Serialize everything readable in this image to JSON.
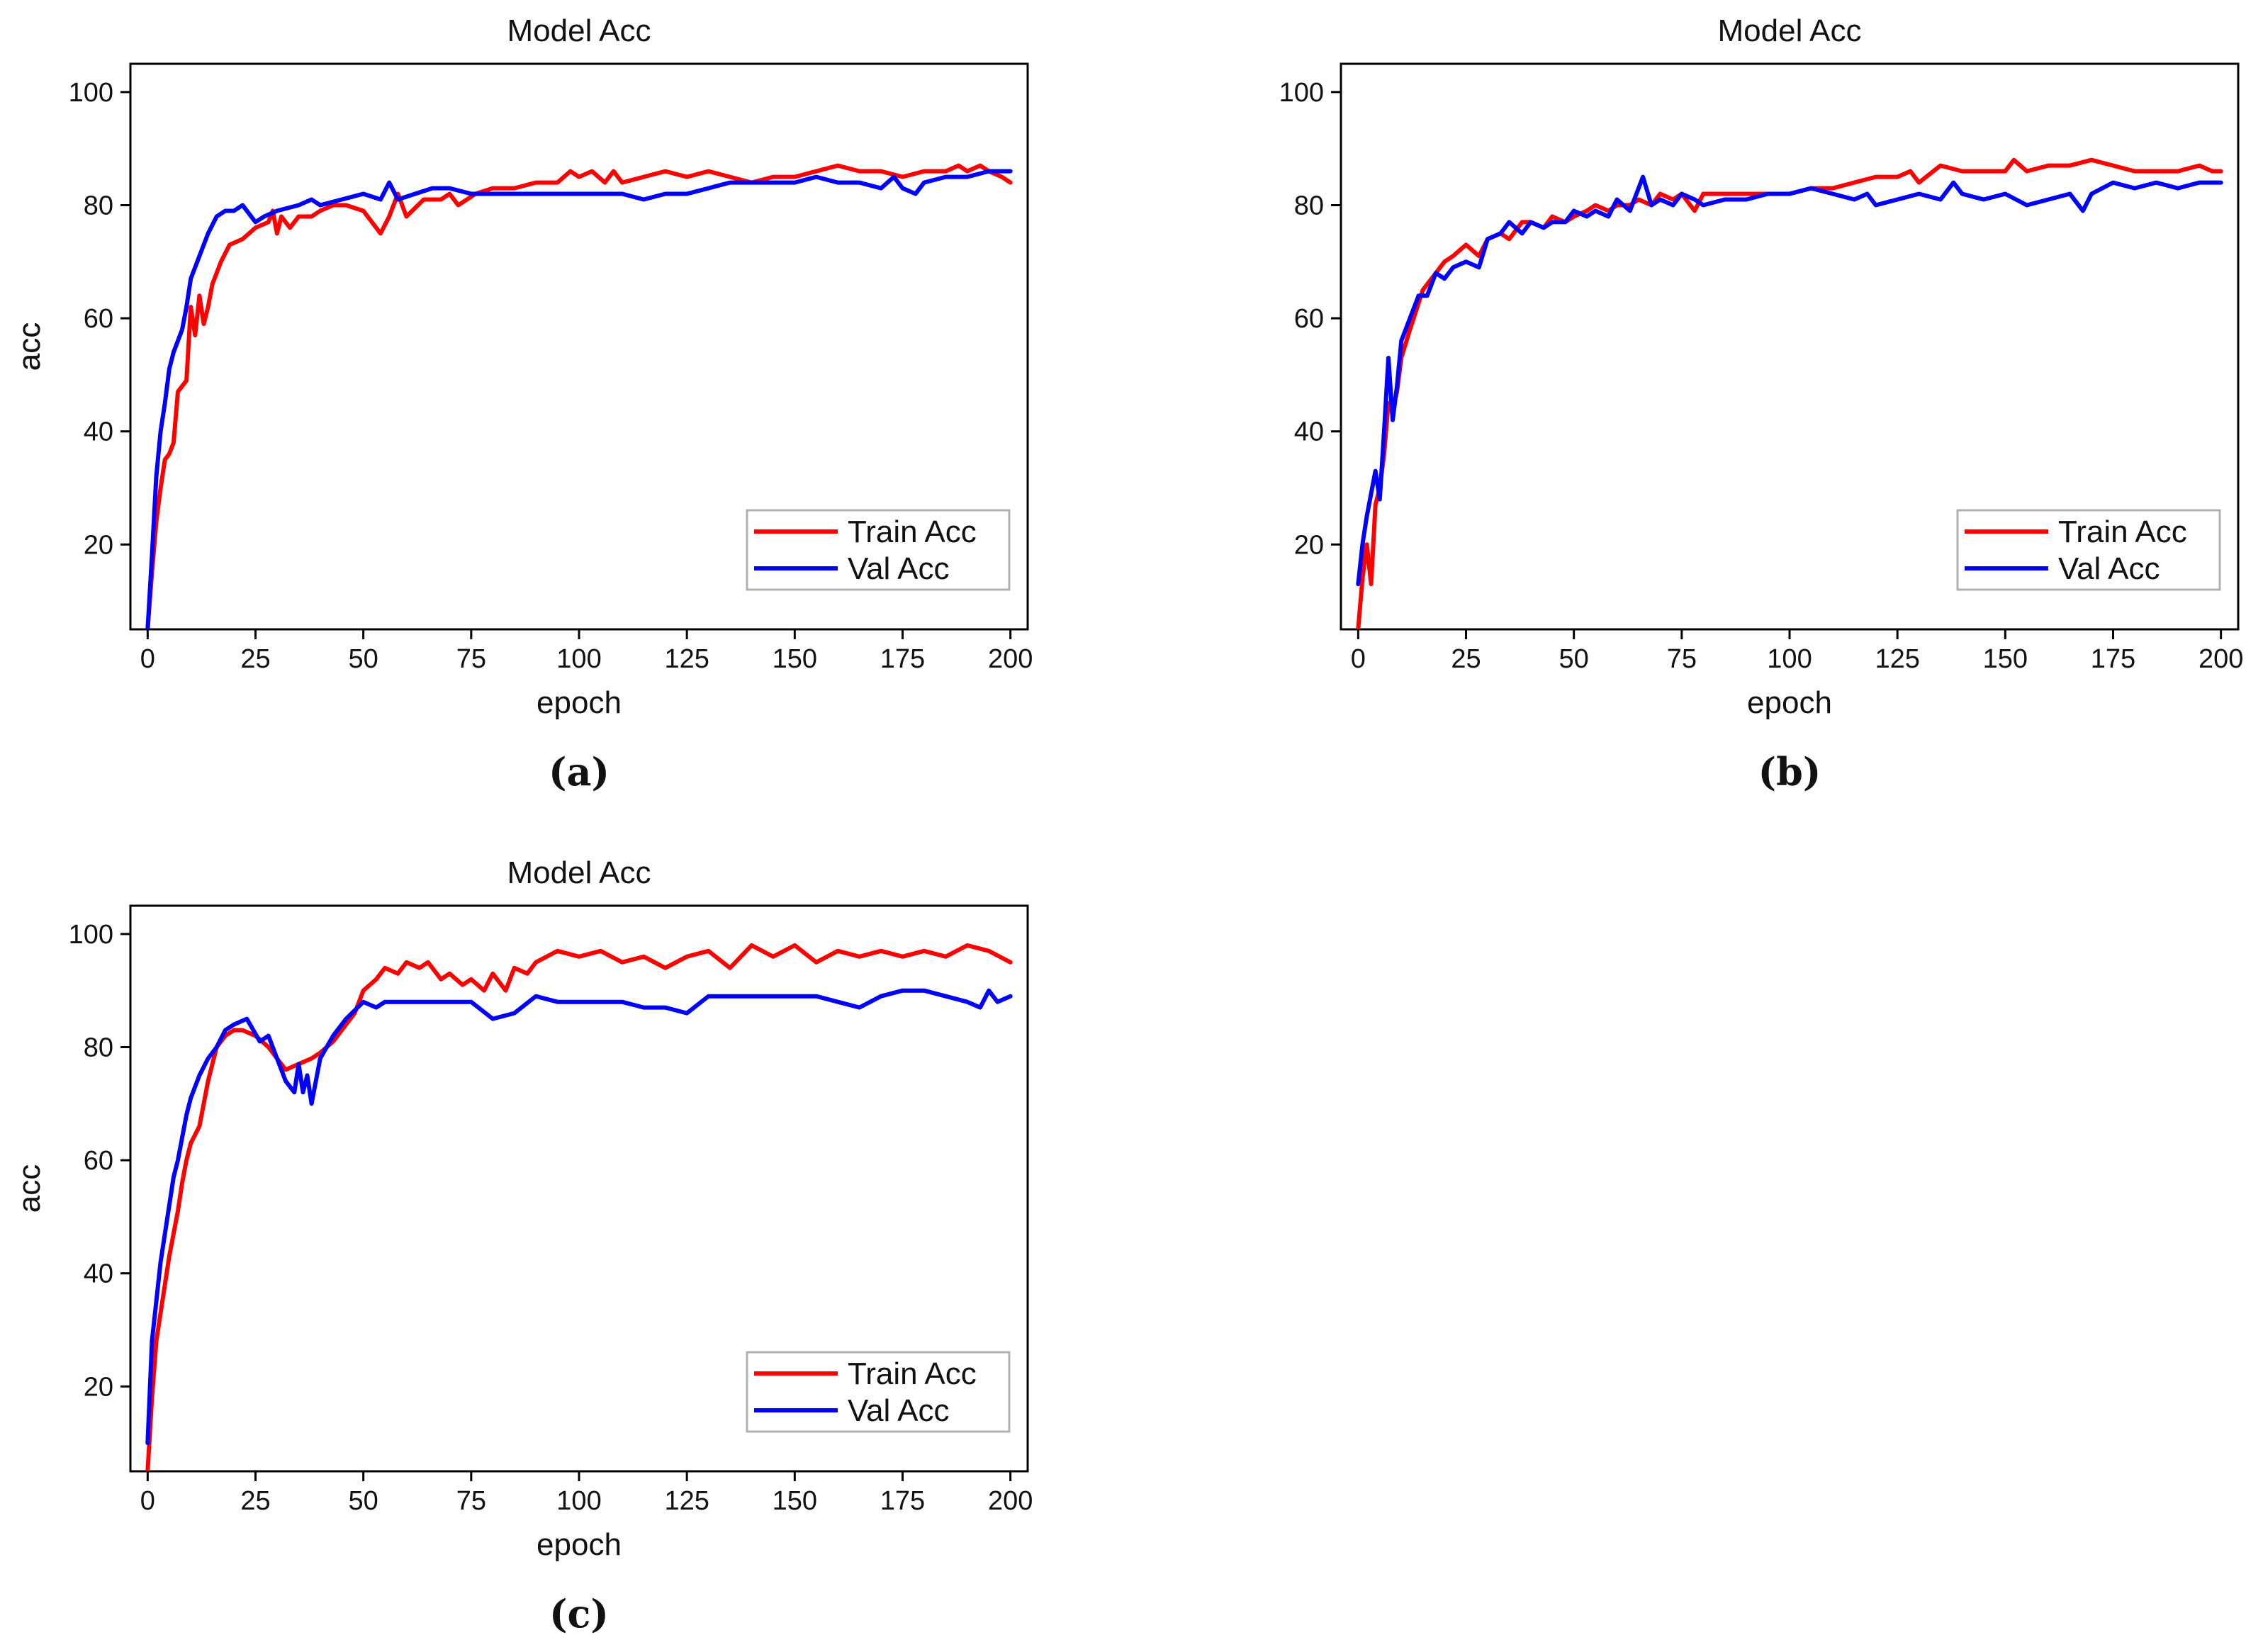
{
  "chart_data": [
    {
      "type": "line",
      "panel_label": "(a)",
      "title": "Model Acc",
      "xlabel": "epoch",
      "ylabel": "acc",
      "xlim": [
        -4,
        204
      ],
      "ylim": [
        5,
        105
      ],
      "xticks": [
        0,
        25,
        50,
        75,
        100,
        125,
        150,
        175,
        200
      ],
      "yticks": [
        20,
        40,
        60,
        80,
        100
      ],
      "legend_position": "bottom-right",
      "series": [
        {
          "name": "Train Acc",
          "color": "#ff0000",
          "x": [
            0,
            1,
            2,
            3,
            4,
            5,
            6,
            7,
            8,
            9,
            10,
            11,
            12,
            13,
            14,
            15,
            17,
            19,
            22,
            25,
            28,
            29,
            30,
            31,
            33,
            35,
            38,
            40,
            43,
            46,
            50,
            52,
            54,
            56,
            58,
            60,
            64,
            68,
            70,
            72,
            76,
            80,
            85,
            90,
            95,
            98,
            100,
            103,
            106,
            108,
            110,
            115,
            120,
            125,
            130,
            135,
            140,
            145,
            150,
            155,
            160,
            165,
            170,
            175,
            180,
            185,
            188,
            190,
            193,
            195,
            198,
            200
          ],
          "y": [
            5,
            15,
            24,
            30,
            35,
            36,
            38,
            47,
            48,
            49,
            62,
            57,
            64,
            59,
            62,
            66,
            70,
            73,
            74,
            76,
            77,
            79,
            75,
            78,
            76,
            78,
            78,
            79,
            80,
            80,
            79,
            77,
            75,
            78,
            82,
            78,
            81,
            81,
            82,
            80,
            82,
            83,
            83,
            84,
            84,
            86,
            85,
            86,
            84,
            86,
            84,
            85,
            86,
            85,
            86,
            85,
            84,
            85,
            85,
            86,
            87,
            86,
            86,
            85,
            86,
            86,
            87,
            86,
            87,
            86,
            85,
            84
          ]
        },
        {
          "name": "Val Acc",
          "color": "#0000ff",
          "x": [
            0,
            1,
            2,
            3,
            4,
            5,
            6,
            7,
            8,
            9,
            10,
            12,
            14,
            16,
            18,
            20,
            22,
            25,
            27,
            30,
            35,
            38,
            40,
            45,
            50,
            54,
            56,
            58,
            62,
            66,
            70,
            75,
            80,
            85,
            90,
            95,
            100,
            105,
            110,
            115,
            120,
            125,
            130,
            135,
            140,
            145,
            150,
            155,
            160,
            165,
            170,
            173,
            175,
            178,
            180,
            185,
            190,
            195,
            200
          ],
          "y": [
            5,
            18,
            32,
            40,
            45,
            51,
            54,
            56,
            58,
            62,
            67,
            71,
            75,
            78,
            79,
            79,
            80,
            77,
            78,
            79,
            80,
            81,
            80,
            81,
            82,
            81,
            84,
            81,
            82,
            83,
            83,
            82,
            82,
            82,
            82,
            82,
            82,
            82,
            82,
            81,
            82,
            82,
            83,
            84,
            84,
            84,
            84,
            85,
            84,
            84,
            83,
            85,
            83,
            82,
            84,
            85,
            85,
            86,
            86
          ]
        }
      ]
    },
    {
      "type": "line",
      "panel_label": "(b)",
      "title": "Model Acc",
      "xlabel": "epoch",
      "ylabel": "acc",
      "xlim": [
        -4,
        204
      ],
      "ylim": [
        5,
        105
      ],
      "xticks": [
        0,
        25,
        50,
        75,
        100,
        125,
        150,
        175,
        200
      ],
      "yticks": [
        20,
        40,
        60,
        80,
        100
      ],
      "legend_position": "bottom-right",
      "series": [
        {
          "name": "Train Acc",
          "color": "#ff0000",
          "x": [
            0,
            1,
            2,
            3,
            4,
            5,
            6,
            7,
            8,
            9,
            10,
            12,
            15,
            18,
            20,
            22,
            25,
            28,
            30,
            33,
            35,
            38,
            40,
            43,
            45,
            48,
            50,
            53,
            55,
            58,
            60,
            63,
            65,
            68,
            70,
            73,
            75,
            78,
            80,
            85,
            90,
            95,
            100,
            105,
            110,
            115,
            120,
            125,
            128,
            130,
            135,
            140,
            145,
            150,
            152,
            155,
            160,
            165,
            170,
            175,
            180,
            185,
            190,
            195,
            198,
            200
          ],
          "y": [
            5,
            14,
            20,
            13,
            27,
            30,
            36,
            45,
            44,
            47,
            53,
            58,
            65,
            68,
            70,
            71,
            73,
            71,
            74,
            75,
            74,
            77,
            77,
            76,
            78,
            77,
            78,
            79,
            80,
            79,
            80,
            80,
            81,
            80,
            82,
            81,
            82,
            79,
            82,
            82,
            82,
            82,
            82,
            83,
            83,
            84,
            85,
            85,
            86,
            84,
            87,
            86,
            86,
            86,
            88,
            86,
            87,
            87,
            88,
            87,
            86,
            86,
            86,
            87,
            86,
            86
          ]
        },
        {
          "name": "Val Acc",
          "color": "#0000ff",
          "x": [
            0,
            1,
            2,
            3,
            4,
            5,
            6,
            7,
            8,
            9,
            10,
            12,
            14,
            16,
            18,
            20,
            22,
            25,
            28,
            30,
            33,
            35,
            38,
            40,
            43,
            45,
            48,
            50,
            53,
            55,
            58,
            60,
            63,
            65,
            66,
            68,
            70,
            73,
            75,
            78,
            80,
            85,
            90,
            95,
            100,
            105,
            110,
            115,
            118,
            120,
            125,
            130,
            135,
            138,
            140,
            145,
            150,
            155,
            160,
            165,
            168,
            170,
            175,
            180,
            185,
            190,
            195,
            200
          ],
          "y": [
            13,
            20,
            25,
            29,
            33,
            28,
            40,
            53,
            42,
            48,
            56,
            60,
            64,
            64,
            68,
            67,
            69,
            70,
            69,
            74,
            75,
            77,
            75,
            77,
            76,
            77,
            77,
            79,
            78,
            79,
            78,
            81,
            79,
            83,
            85,
            80,
            81,
            80,
            82,
            81,
            80,
            81,
            81,
            82,
            82,
            83,
            82,
            81,
            82,
            80,
            81,
            82,
            81,
            84,
            82,
            81,
            82,
            80,
            81,
            82,
            79,
            82,
            84,
            83,
            84,
            83,
            84,
            84
          ]
        }
      ]
    },
    {
      "type": "line",
      "panel_label": "(c)",
      "title": "Model Acc",
      "xlabel": "epoch",
      "ylabel": "acc",
      "xlim": [
        -4,
        204
      ],
      "ylim": [
        5,
        105
      ],
      "xticks": [
        0,
        25,
        50,
        75,
        100,
        125,
        150,
        175,
        200
      ],
      "yticks": [
        20,
        40,
        60,
        80,
        100
      ],
      "legend_position": "bottom-right",
      "series": [
        {
          "name": "Train Acc",
          "color": "#ff0000",
          "x": [
            0,
            1,
            2,
            3,
            4,
            5,
            6,
            7,
            8,
            9,
            10,
            12,
            14,
            16,
            18,
            20,
            22,
            25,
            28,
            30,
            32,
            35,
            38,
            40,
            43,
            45,
            48,
            50,
            53,
            55,
            58,
            60,
            63,
            65,
            68,
            70,
            73,
            75,
            78,
            80,
            83,
            85,
            88,
            90,
            95,
            100,
            105,
            110,
            115,
            120,
            125,
            130,
            135,
            140,
            145,
            150,
            155,
            160,
            165,
            170,
            175,
            180,
            185,
            190,
            195,
            200
          ],
          "y": [
            5,
            18,
            28,
            33,
            38,
            43,
            47,
            51,
            56,
            60,
            63,
            66,
            74,
            80,
            82,
            83,
            83,
            82,
            80,
            78,
            76,
            77,
            78,
            79,
            81,
            83,
            86,
            90,
            92,
            94,
            93,
            95,
            94,
            95,
            92,
            93,
            91,
            92,
            90,
            93,
            90,
            94,
            93,
            95,
            97,
            96,
            97,
            95,
            96,
            94,
            96,
            97,
            94,
            98,
            96,
            98,
            95,
            97,
            96,
            97,
            96,
            97,
            96,
            98,
            97,
            95
          ]
        },
        {
          "name": "Val Acc",
          "color": "#0000ff",
          "x": [
            0,
            1,
            2,
            3,
            4,
            5,
            6,
            7,
            8,
            9,
            10,
            12,
            14,
            16,
            18,
            20,
            23,
            26,
            28,
            30,
            32,
            34,
            35,
            36,
            37,
            38,
            39,
            40,
            43,
            46,
            50,
            53,
            55,
            60,
            65,
            70,
            75,
            80,
            85,
            90,
            95,
            100,
            105,
            110,
            115,
            120,
            125,
            130,
            135,
            140,
            145,
            150,
            155,
            160,
            165,
            170,
            175,
            180,
            185,
            190,
            193,
            195,
            197,
            200
          ],
          "y": [
            10,
            28,
            35,
            42,
            47,
            52,
            57,
            60,
            64,
            68,
            71,
            75,
            78,
            80,
            83,
            84,
            85,
            81,
            82,
            78,
            74,
            72,
            77,
            72,
            75,
            70,
            74,
            78,
            82,
            85,
            88,
            87,
            88,
            88,
            88,
            88,
            88,
            85,
            86,
            89,
            88,
            88,
            88,
            88,
            87,
            87,
            86,
            89,
            89,
            89,
            89,
            89,
            89,
            88,
            87,
            89,
            90,
            90,
            89,
            88,
            87,
            90,
            88,
            89
          ]
        }
      ]
    }
  ]
}
